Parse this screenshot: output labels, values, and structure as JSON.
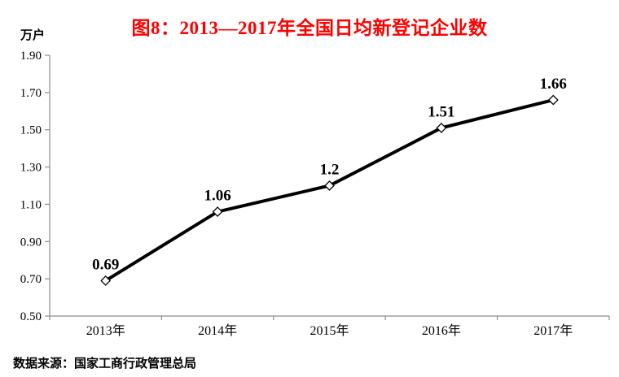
{
  "page": {
    "title": "图8：2013—2017年全国日均新登记企业数",
    "unit_label": "万户",
    "source_note": "数据来源：国家工商行政管理总局"
  },
  "colors": {
    "title_red": "#fe0000",
    "line_black": "#000000",
    "axis_gray": "#8c8c8c",
    "text_black": "#000000",
    "marker_fill": "#ffffff"
  },
  "chart_data": {
    "type": "line",
    "title": "图8：2013—2017年全国日均新登记企业数",
    "unit": "万户",
    "categories": [
      "2013年",
      "2014年",
      "2015年",
      "2016年",
      "2017年"
    ],
    "series": [
      {
        "name": "全国日均新登记企业数",
        "values": [
          0.69,
          1.06,
          1.2,
          1.51,
          1.66
        ]
      }
    ],
    "point_labels": [
      "0.69",
      "1.06",
      "1.2",
      "1.51",
      "1.66"
    ],
    "ylim": [
      0.5,
      1.9
    ],
    "y_tick_labels": [
      "0.50",
      "0.70",
      "0.90",
      "1.10",
      "1.30",
      "1.50",
      "1.70",
      "1.90"
    ],
    "xlabel": "",
    "ylabel": "万户",
    "grid": false,
    "legend": "none",
    "marker": "open-diamond",
    "source": "数据来源：国家工商行政管理总局"
  }
}
